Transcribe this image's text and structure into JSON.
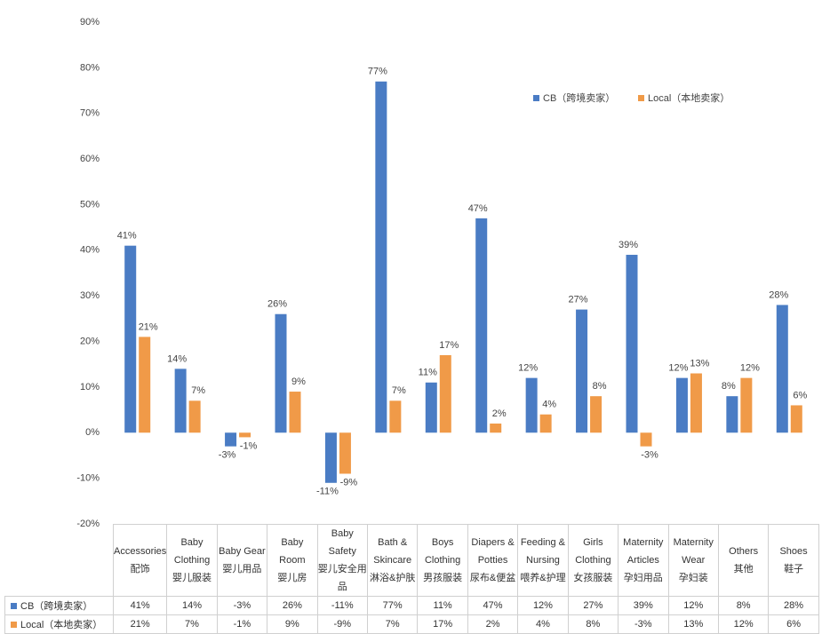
{
  "chart_data": {
    "type": "bar",
    "categories": [
      "Accessories\n配饰",
      "Baby Clothing\n婴儿服装",
      "Baby Gear\n婴儿用品",
      "Baby Room\n婴儿房",
      "Baby Safety\n婴儿安全用品",
      "Bath & Skincare\n淋浴&护肤",
      "Boys Clothing\n男孩服装",
      "Diapers & Potties\n尿布&便盆",
      "Feeding & Nursing\n喂养&护理",
      "Girls Clothing\n女孩服装",
      "Maternity Articles\n孕妇用品",
      "Maternity Wear\n孕妇装",
      "Others\n其他",
      "Shoes\n鞋子"
    ],
    "series": [
      {
        "name": "CB（跨境卖家）",
        "color": "#4a7cc4",
        "values": [
          41,
          14,
          -3,
          26,
          -11,
          77,
          11,
          47,
          12,
          27,
          39,
          12,
          8,
          28
        ],
        "value_labels": [
          "41%",
          "14%",
          "-3%",
          "26%",
          "-11%",
          "77%",
          "11%",
          "47%",
          "12%",
          "27%",
          "39%",
          "12%",
          "8%",
          "28%"
        ]
      },
      {
        "name": "Local（本地卖家）",
        "color": "#f09a48",
        "values": [
          21,
          7,
          -1,
          9,
          -9,
          7,
          17,
          2,
          4,
          8,
          -3,
          13,
          12,
          6
        ],
        "value_labels": [
          "21%",
          "7%",
          "-1%",
          "9%",
          "-9%",
          "7%",
          "17%",
          "2%",
          "4%",
          "8%",
          "-3%",
          "13%",
          "12%",
          "6%"
        ]
      }
    ],
    "ylim": [
      -20,
      90
    ],
    "yticks": [
      {
        "value": -20,
        "label": "-20%"
      },
      {
        "value": -10,
        "label": "-10%"
      },
      {
        "value": 0,
        "label": "0%"
      },
      {
        "value": 10,
        "label": "10%"
      },
      {
        "value": 20,
        "label": "20%"
      },
      {
        "value": 30,
        "label": "30%"
      },
      {
        "value": 40,
        "label": "40%"
      },
      {
        "value": 50,
        "label": "50%"
      },
      {
        "value": 60,
        "label": "60%"
      },
      {
        "value": 70,
        "label": "70%"
      },
      {
        "value": 80,
        "label": "80%"
      },
      {
        "value": 90,
        "label": "90%"
      }
    ],
    "grid": false,
    "legend": "top-right"
  }
}
